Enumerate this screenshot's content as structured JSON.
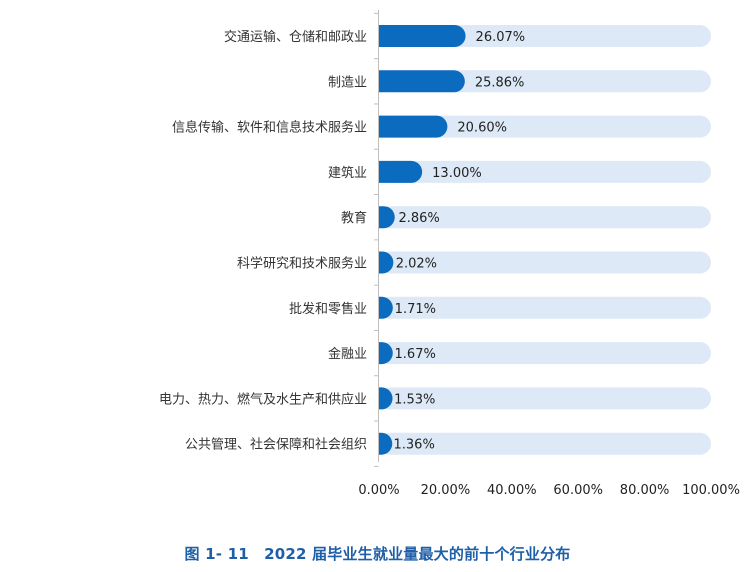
{
  "figure": {
    "caption": "图 1- 11　2022 届毕业生就业量最大的前十个行业分布"
  },
  "colors": {
    "bar": "#0b6bbf",
    "track": "#dde9f6",
    "axis": "#bfbfbf",
    "caption": "#1f5fa8"
  },
  "chart_data": {
    "type": "bar",
    "orientation": "horizontal",
    "title": "",
    "xlabel": "",
    "ylabel": "",
    "xlim": [
      0,
      100
    ],
    "ticks": [
      "0.00%",
      "20.00%",
      "40.00%",
      "60.00%",
      "80.00%",
      "100.00%"
    ],
    "tick_values": [
      0,
      20,
      40,
      60,
      80,
      100
    ],
    "grid": false,
    "legend": "none",
    "categories": [
      "交通运输、仓储和邮政业",
      "制造业",
      "信息传输、软件和信息技术服务业",
      "建筑业",
      "教育",
      "科学研究和技术服务业",
      "批发和零售业",
      "金融业",
      "电力、热力、燃气及水生产和供应业",
      "公共管理、社会保障和社会组织"
    ],
    "values": [
      26.07,
      25.86,
      20.6,
      13.0,
      2.86,
      2.02,
      1.71,
      1.67,
      1.53,
      1.36
    ],
    "value_labels": [
      "26.07%",
      "25.86%",
      "20.60%",
      "13.00%",
      "2.86%",
      "2.02%",
      "1.71%",
      "1.67%",
      "1.53%",
      "1.36%"
    ]
  }
}
